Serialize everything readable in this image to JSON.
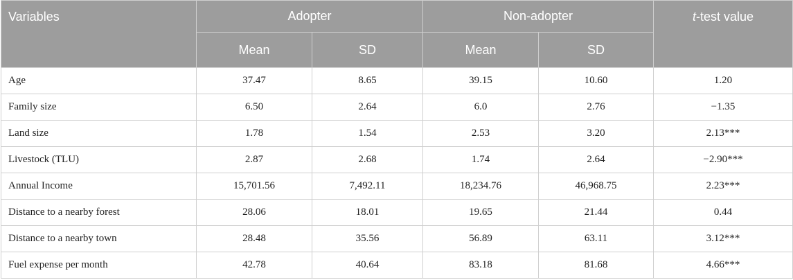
{
  "header": {
    "variables": "Variables",
    "adopter": "Adopter",
    "non_adopter": "Non-adopter",
    "ttest_italic": "t",
    "ttest_rest": "-test value",
    "mean": "Mean",
    "sd": "SD"
  },
  "rows": [
    {
      "variable": "Age",
      "adopter_mean": "37.47",
      "adopter_sd": "8.65",
      "non_mean": "39.15",
      "non_sd": "10.60",
      "t": "1.20"
    },
    {
      "variable": "Family size",
      "adopter_mean": "6.50",
      "adopter_sd": "2.64",
      "non_mean": "6.0",
      "non_sd": "2.76",
      "t": "−1.35"
    },
    {
      "variable": "Land size",
      "adopter_mean": "1.78",
      "adopter_sd": "1.54",
      "non_mean": "2.53",
      "non_sd": "3.20",
      "t": "2.13***"
    },
    {
      "variable": "Livestock (TLU)",
      "adopter_mean": "2.87",
      "adopter_sd": "2.68",
      "non_mean": "1.74",
      "non_sd": "2.64",
      "t": "−2.90***"
    },
    {
      "variable": "Annual Income",
      "adopter_mean": "15,701.56",
      "adopter_sd": "7,492.11",
      "non_mean": "18,234.76",
      "non_sd": "46,968.75",
      "t": "2.23***"
    },
    {
      "variable": "Distance to a nearby forest",
      "adopter_mean": "28.06",
      "adopter_sd": "18.01",
      "non_mean": "19.65",
      "non_sd": "21.44",
      "t": "0.44"
    },
    {
      "variable": "Distance to a nearby town",
      "adopter_mean": "28.48",
      "adopter_sd": "35.56",
      "non_mean": "56.89",
      "non_sd": "63.11",
      "t": "3.12***"
    },
    {
      "variable": "Fuel expense per month",
      "adopter_mean": "42.78",
      "adopter_sd": "40.64",
      "non_mean": "83.18",
      "non_sd": "81.68",
      "t": "4.66***"
    }
  ]
}
